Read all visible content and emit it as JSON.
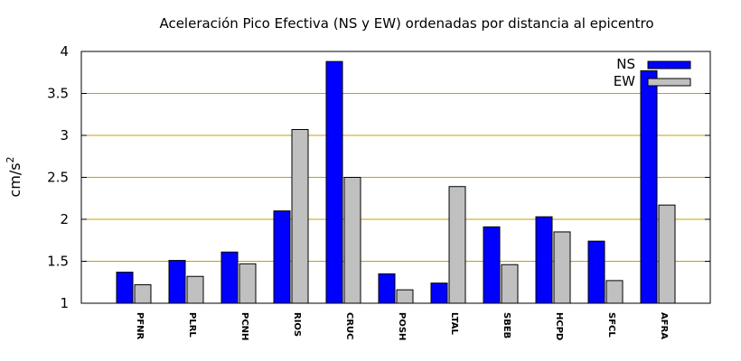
{
  "chart_data": {
    "type": "bar",
    "title": "Aceleración Pico Efectiva (NS y EW) ordenadas por distancia al epicentro",
    "ylabel": "cm/s",
    "ylabel_superscript": "2",
    "xlabel": "",
    "ylim": [
      1,
      4
    ],
    "yticks": [
      "1",
      "1.5",
      "2",
      "2.5",
      "3",
      "3.5",
      "4"
    ],
    "grid": "horizontal",
    "legend_position": "top-right",
    "categories": [
      "PFNR",
      "PLRL",
      "PCNH",
      "RIOS",
      "CRUC",
      "POSH",
      "LTAL",
      "SBEB",
      "HCPD",
      "SFCL",
      "AFRA"
    ],
    "series": [
      {
        "name": "NS",
        "color": "#0000ff",
        "values": [
          1.37,
          1.51,
          1.61,
          2.1,
          3.88,
          1.35,
          1.24,
          1.91,
          2.03,
          1.74,
          3.77
        ]
      },
      {
        "name": "EW",
        "color": "#c0c0c0",
        "values": [
          1.22,
          1.32,
          1.47,
          3.07,
          2.5,
          1.16,
          2.39,
          1.46,
          1.85,
          1.27,
          2.17
        ]
      }
    ],
    "grid_color": "#c8a000"
  }
}
